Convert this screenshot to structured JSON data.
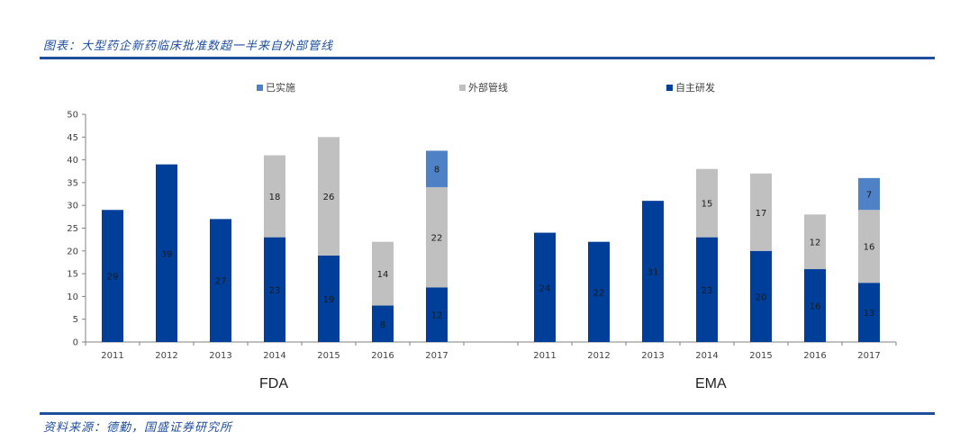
{
  "header": {
    "title": "图表：大型药企新药临床批准数超一半来自外部管线"
  },
  "footer": {
    "source": "资料来源：德勤，国盛证券研究所"
  },
  "colors": {
    "accent": "#1f4e9c",
    "self": "#003f99",
    "external": "#c0c0c0",
    "done": "#4f81c7"
  },
  "chart_data": {
    "type": "bar",
    "stacked": true,
    "title": "大型药企新药临床批准数超一半来自外部管线",
    "ylim": [
      0,
      50
    ],
    "yticks": [
      0,
      5,
      10,
      15,
      20,
      25,
      30,
      35,
      40,
      45,
      50
    ],
    "grid": false,
    "legend_placement": "top",
    "legend": [
      "已实施",
      "外部管线",
      "自主研发"
    ],
    "groups": [
      {
        "name": "FDA",
        "categories": [
          "2011",
          "2012",
          "2013",
          "2014",
          "2015",
          "2016",
          "2017"
        ],
        "series": [
          {
            "name": "自主研发",
            "color": "#003f99",
            "values": [
              29,
              39,
              27,
              23,
              19,
              8,
              12
            ]
          },
          {
            "name": "外部管线",
            "color": "#c0c0c0",
            "values": [
              0,
              0,
              0,
              18,
              26,
              14,
              22
            ]
          },
          {
            "name": "已实施",
            "color": "#4f81c7",
            "values": [
              0,
              0,
              0,
              0,
              0,
              0,
              8
            ]
          }
        ]
      },
      {
        "name": "EMA",
        "categories": [
          "2011",
          "2012",
          "2013",
          "2014",
          "2015",
          "2016",
          "2017"
        ],
        "series": [
          {
            "name": "自主研发",
            "color": "#003f99",
            "values": [
              24,
              22,
              31,
              23,
              20,
              16,
              13
            ]
          },
          {
            "name": "外部管线",
            "color": "#c0c0c0",
            "values": [
              0,
              0,
              0,
              15,
              17,
              12,
              16
            ]
          },
          {
            "name": "已实施",
            "color": "#4f81c7",
            "values": [
              0,
              0,
              0,
              0,
              0,
              0,
              7
            ]
          }
        ]
      }
    ]
  }
}
